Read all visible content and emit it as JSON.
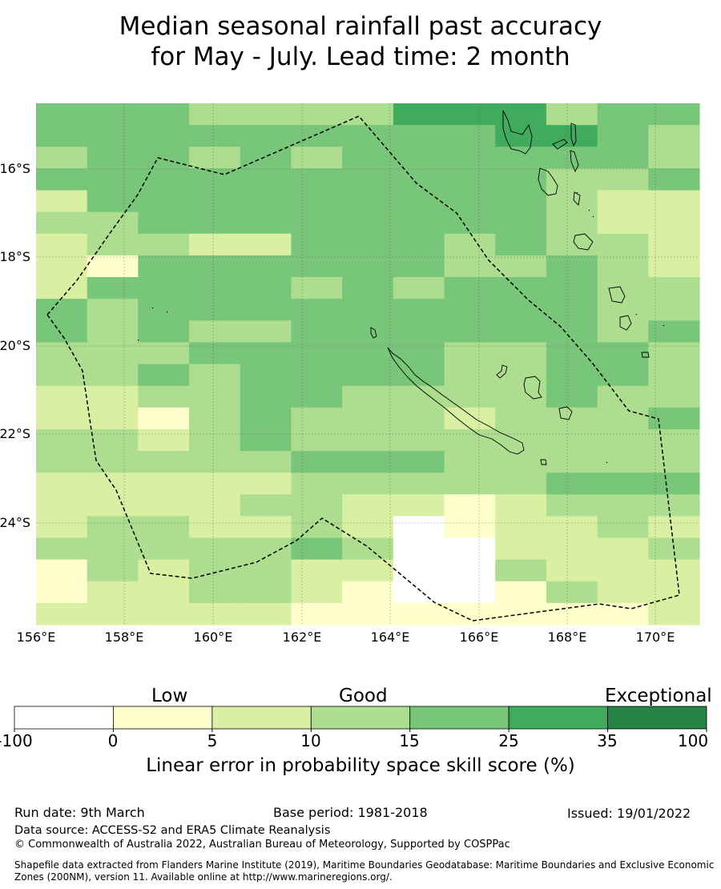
{
  "title": {
    "line1": "Median seasonal rainfall past accuracy",
    "line2": "for May - July. Lead time: 2 month"
  },
  "map": {
    "lon_ticks": [
      "156°E",
      "158°E",
      "160°E",
      "162°E",
      "164°E",
      "166°E",
      "168°E",
      "170°E"
    ],
    "lat_ticks": [
      "16°S",
      "18°S",
      "20°S",
      "22°S",
      "24°S"
    ],
    "legend_categories": [
      "Low",
      "Good",
      "Exceptional"
    ],
    "colorbar": {
      "bounds": [
        "-100",
        "0",
        "5",
        "10",
        "15",
        "25",
        "35",
        "100"
      ],
      "colors": [
        "#ffffff",
        "#ffffcc",
        "#d9f0a3",
        "#addd8e",
        "#78c679",
        "#41ab5d",
        "#238443"
      ],
      "title": "Linear error in probability space skill score (%)"
    },
    "grid_palette": [
      "#ffffff",
      "#ffffcc",
      "#d9f0a3",
      "#addd8e",
      "#78c679",
      "#41ab5d",
      "#238443"
    ],
    "grid_levels": [
      "4443333555344",
      "4444444445543",
      "3443434444443",
      "4444444444334",
      "2444444444322",
      "3344444444322",
      "2332244434332",
      "2144444433432",
      "2444434344433",
      "4344444444433",
      "4343344444434",
      "3334444433443",
      "3343444433443",
      "2233443333433",
      "2213433323334",
      "3323433333333",
      "3333344433333",
      "2222233333444",
      "2222332212333",
      "2332232012232",
      "3333343002223",
      "1323322003222",
      "1223321001322",
      "2222211111112"
    ]
  },
  "footer": {
    "run_date": "Run date: 9th March",
    "base_period": "Base period: 1981-2018",
    "issued": "Issued: 19/01/2022",
    "data_source": "Data source: ACCESS-S2 and ERA5 Climate Reanalysis",
    "copyright": "© Commonwealth of Australia 2022, Australian Bureau of Meteorology, Supported by COSPPac",
    "shapefile_line1": "Shapefile data extracted from Flanders Marine Institute (2019), Maritime Boundaries Geodatabase: Maritime Boundaries and Exclusive Economic",
    "shapefile_line2": "Zones (200NM), version 11. Available online at http://www.marineregions.org/."
  }
}
